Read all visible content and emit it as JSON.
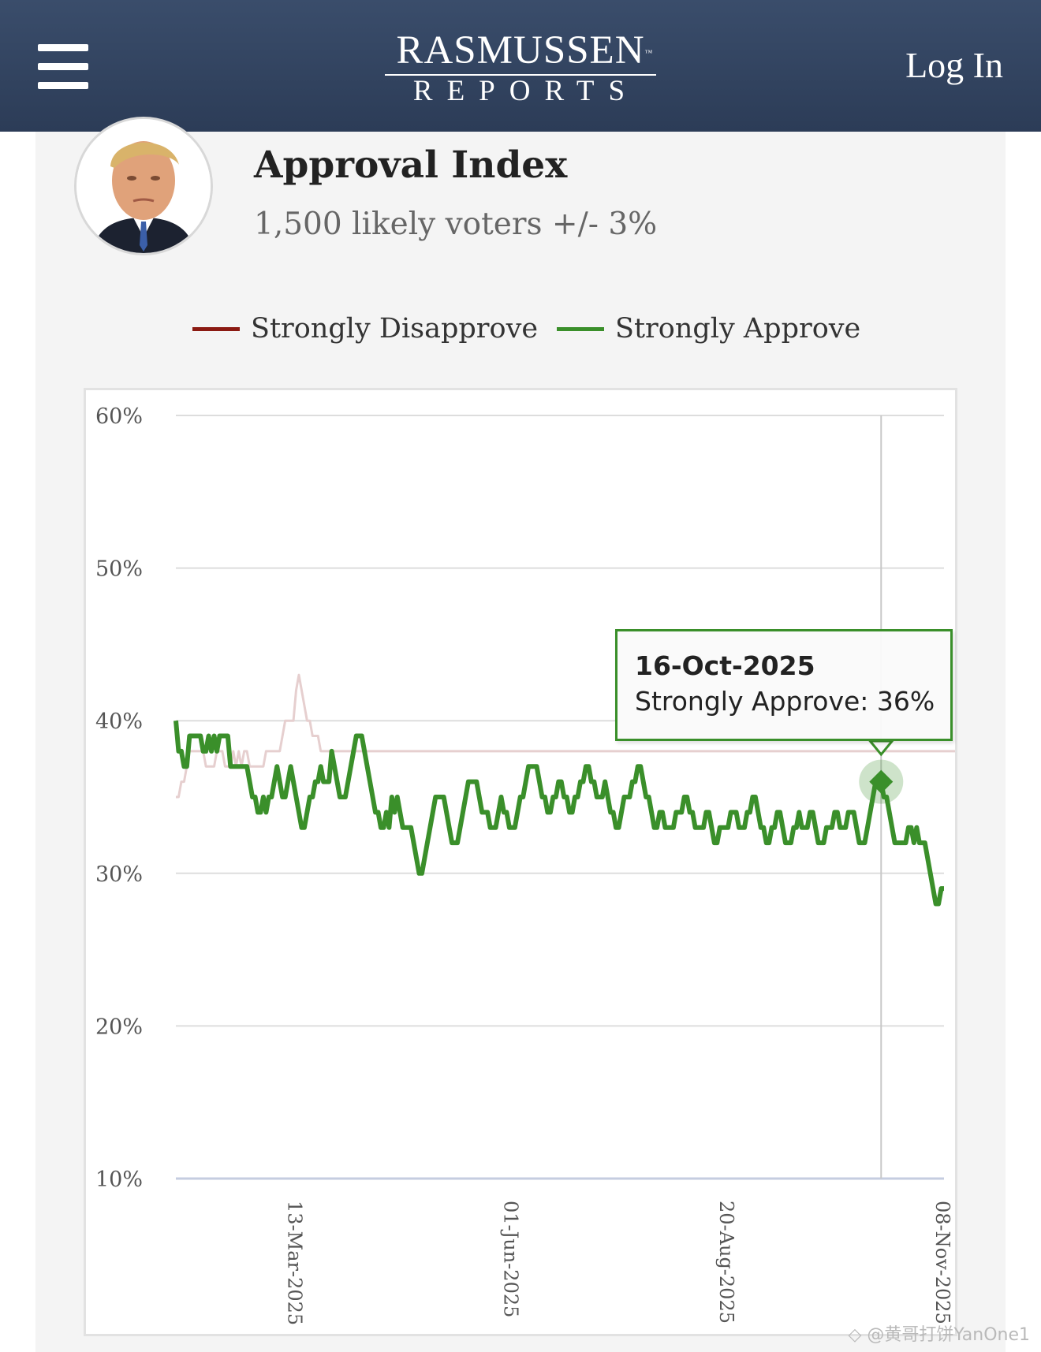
{
  "header": {
    "logo_main": "RASMUSSEN",
    "logo_tm": "™",
    "logo_sub": "REPORTS",
    "login_label": "Log In",
    "menu_icon": "hamburger-menu-icon"
  },
  "poll": {
    "title": "Approval Index",
    "subtitle": "1,500 likely voters +/- 3%"
  },
  "tooltip": {
    "date": "16-Oct-2025",
    "label": "Strongly Approve: 36%"
  },
  "watermark": "◇ @黄哥打饼YanOne1",
  "colors": {
    "disapprove": "#8b1a12",
    "disapprove_faded": "#e6cfcf",
    "approve": "#3a8f2a",
    "grid": "#dddddd",
    "baseline": "#c5cde0",
    "header_bg": "#34465f"
  },
  "chart_data": {
    "type": "line",
    "title": "Approval Index",
    "xlabel": "",
    "ylabel": "",
    "ylim": [
      10,
      60
    ],
    "yticks": [
      "60%",
      "50%",
      "40%",
      "30%",
      "20%",
      "10%"
    ],
    "ytick_values": [
      60,
      50,
      40,
      30,
      20,
      10
    ],
    "xticks": [
      "13-Mar-2025",
      "01-Jun-2025",
      "20-Aug-2025",
      "08-Nov-2025"
    ],
    "xtick_index": [
      44,
      123,
      202,
      281
    ],
    "legend": [
      "Strongly Disapprove",
      "Strongly Approve"
    ],
    "legend_position": "top-center",
    "grid": true,
    "highlight": {
      "series": "Strongly Approve",
      "index": 258,
      "value": 36,
      "label": "16-Oct-2025"
    },
    "series": [
      {
        "name": "Strongly Disapprove",
        "values": [
          35,
          35,
          36,
          36,
          37,
          38,
          38,
          38,
          38,
          38,
          38,
          37,
          37,
          37,
          37,
          38,
          38,
          38,
          37,
          37,
          37,
          38,
          37,
          38,
          37,
          38,
          38,
          37,
          37,
          37,
          37,
          37,
          37,
          38,
          38,
          38,
          38,
          38,
          38,
          39,
          40,
          40,
          40,
          40,
          42,
          43,
          42,
          41,
          40,
          40,
          39,
          39,
          39,
          38,
          38,
          38,
          38,
          38,
          38,
          38,
          38,
          38,
          38,
          38,
          38,
          38,
          38,
          38,
          38,
          38,
          38,
          38,
          38,
          38,
          38,
          38,
          38,
          38,
          38,
          38,
          38,
          38,
          38,
          38,
          38,
          38,
          38,
          38,
          38,
          38,
          38,
          38,
          38,
          38,
          38,
          38,
          38,
          38,
          38,
          38,
          38,
          38,
          38,
          38,
          38,
          38,
          38,
          38,
          38,
          38,
          38,
          38,
          38,
          38,
          38,
          38,
          38,
          38,
          38,
          38,
          38,
          38,
          38,
          38,
          38,
          38,
          38,
          38,
          38,
          38,
          38,
          38,
          38,
          38,
          38,
          38,
          38,
          38,
          38,
          38,
          38,
          38,
          38,
          38,
          38,
          38,
          38,
          38,
          38,
          38,
          38,
          38,
          38,
          38,
          38,
          38,
          38,
          38,
          38,
          38,
          38,
          38,
          38,
          38,
          38,
          38,
          38,
          38,
          38,
          38,
          38,
          38,
          38,
          38,
          38,
          38,
          38,
          38,
          38,
          38,
          38,
          38,
          38,
          38,
          38,
          38,
          38,
          38,
          38,
          38,
          38,
          38,
          38,
          38,
          38,
          38,
          38,
          38,
          38,
          38,
          38,
          38,
          38,
          38,
          38,
          38,
          38,
          38,
          38,
          38,
          38,
          38,
          38,
          38,
          38,
          38,
          38,
          38,
          38,
          38,
          38,
          38,
          38,
          38,
          38,
          38,
          38,
          38,
          38,
          38,
          38,
          38,
          38,
          38,
          38,
          38,
          38,
          38,
          38,
          38,
          38,
          38,
          38,
          38,
          38,
          38,
          38,
          38,
          38,
          38,
          38,
          38,
          38,
          38,
          38,
          38,
          38,
          38,
          38,
          38,
          38,
          38,
          38,
          38,
          38,
          38,
          38,
          38,
          38,
          38,
          38,
          38,
          38,
          38,
          38,
          38,
          38,
          38,
          38,
          38,
          38,
          38,
          38,
          38,
          38,
          38,
          38,
          38,
          38,
          38,
          38,
          38,
          38,
          38
        ]
      },
      {
        "name": "Strongly Approve",
        "values": [
          40,
          38,
          38,
          37,
          37,
          39,
          39,
          39,
          39,
          39,
          38,
          38,
          39,
          38,
          39,
          38,
          39,
          39,
          39,
          39,
          37,
          37,
          37,
          37,
          37,
          37,
          37,
          36,
          35,
          35,
          34,
          34,
          35,
          34,
          35,
          35,
          36,
          37,
          36,
          35,
          35,
          36,
          37,
          36,
          35,
          34,
          33,
          33,
          34,
          35,
          35,
          36,
          36,
          37,
          36,
          36,
          36,
          38,
          37,
          36,
          35,
          35,
          35,
          36,
          37,
          38,
          39,
          39,
          39,
          38,
          37,
          36,
          35,
          34,
          34,
          33,
          33,
          34,
          33,
          35,
          34,
          35,
          34,
          33,
          33,
          33,
          33,
          32,
          31,
          30,
          30,
          31,
          32,
          33,
          34,
          35,
          35,
          35,
          35,
          34,
          33,
          32,
          32,
          32,
          33,
          34,
          35,
          36,
          36,
          36,
          36,
          35,
          34,
          34,
          34,
          33,
          33,
          33,
          34,
          35,
          34,
          34,
          33,
          33,
          33,
          34,
          35,
          35,
          36,
          37,
          37,
          37,
          37,
          36,
          35,
          35,
          34,
          34,
          35,
          35,
          36,
          36,
          35,
          35,
          34,
          34,
          35,
          35,
          36,
          36,
          37,
          37,
          36,
          36,
          35,
          35,
          35,
          36,
          35,
          34,
          34,
          33,
          33,
          34,
          35,
          35,
          35,
          36,
          36,
          37,
          37,
          36,
          35,
          35,
          34,
          33,
          33,
          34,
          34,
          33,
          33,
          33,
          33,
          34,
          34,
          34,
          35,
          35,
          34,
          34,
          33,
          33,
          33,
          33,
          34,
          34,
          33,
          32,
          32,
          33,
          33,
          33,
          33,
          34,
          34,
          34,
          33,
          33,
          33,
          34,
          34,
          35,
          35,
          34,
          33,
          33,
          32,
          32,
          33,
          33,
          34,
          34,
          33,
          32,
          32,
          32,
          33,
          33,
          34,
          33,
          33,
          33,
          34,
          34,
          33,
          32,
          32,
          32,
          33,
          33,
          33,
          34,
          34,
          33,
          33,
          33,
          34,
          34,
          34,
          33,
          32,
          32,
          32,
          33,
          34,
          35,
          36,
          36,
          36,
          35,
          35,
          34,
          33,
          32,
          32,
          32,
          32,
          32,
          33,
          33,
          32,
          33,
          32,
          32,
          32,
          31,
          30,
          29,
          28,
          28,
          29,
          29
        ]
      }
    ]
  }
}
